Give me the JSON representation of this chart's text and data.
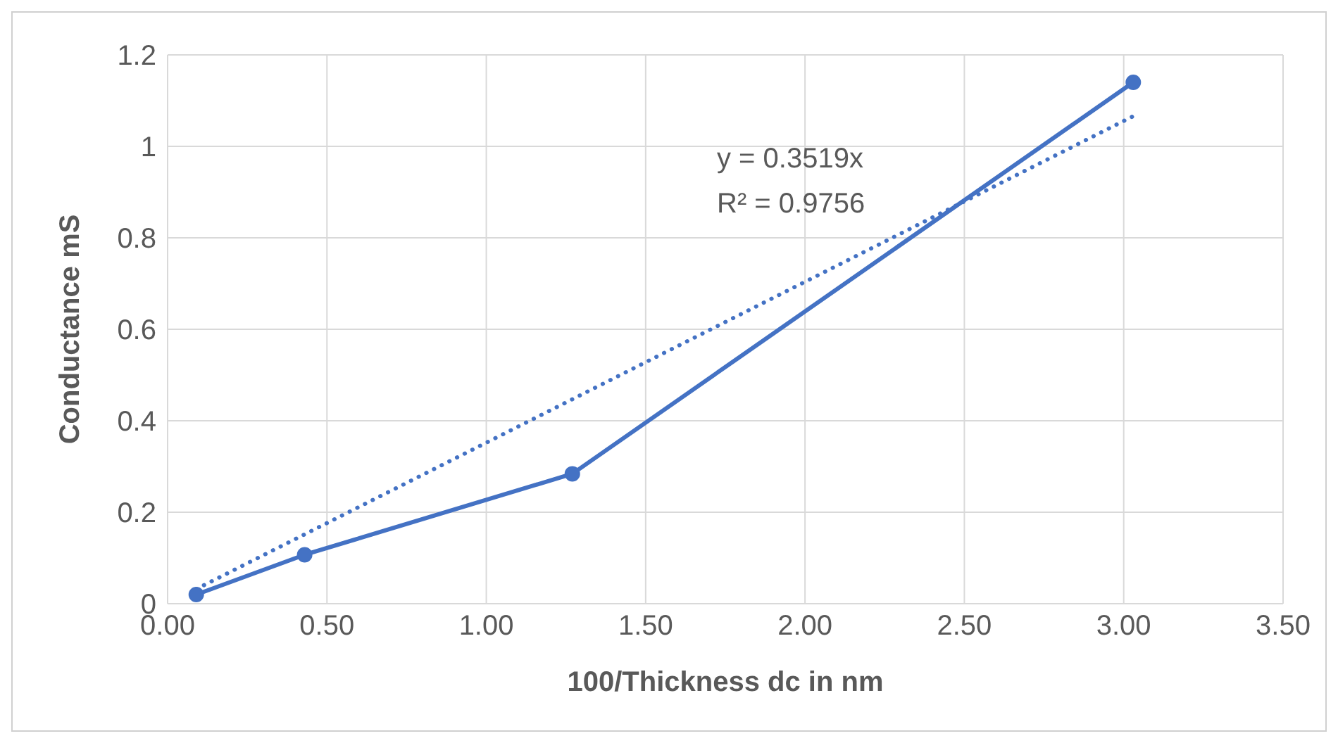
{
  "chart_data": {
    "type": "line",
    "xlabel": "100/Thickness dc in nm",
    "ylabel": "Conductance mS",
    "x": [
      0.09,
      0.43,
      1.27,
      3.03
    ],
    "series": [
      {
        "color": "#4472c4",
        "values": [
          0.02,
          0.107,
          0.284,
          1.14
        ],
        "marker": "circle",
        "line_style": "solid"
      },
      {
        "color": "#4472c4",
        "x": [
          0.09,
          3.03
        ],
        "values": [
          0.032,
          1.066
        ],
        "marker": "none",
        "line_style": "dotted"
      }
    ],
    "xlim": [
      0,
      3.5
    ],
    "xticks": [
      {
        "value": 0,
        "label": "0.00"
      },
      {
        "value": 0.5,
        "label": "0.50"
      },
      {
        "value": 1,
        "label": "1.00"
      },
      {
        "value": 1.5,
        "label": "1.50"
      },
      {
        "value": 2,
        "label": "2.00"
      },
      {
        "value": 2.5,
        "label": "2.50"
      },
      {
        "value": 3,
        "label": "3.00"
      },
      {
        "value": 3.5,
        "label": "3.50"
      }
    ],
    "ylim": [
      0,
      1.2
    ],
    "yticks": [
      0,
      0.2,
      0.4,
      0.6,
      0.8,
      1,
      1.2
    ],
    "grid": true,
    "annotations": [
      "y = 0.3519x",
      "R² = 0.9756"
    ]
  }
}
